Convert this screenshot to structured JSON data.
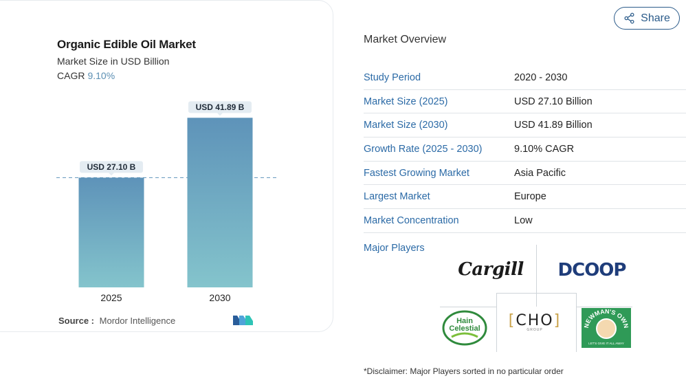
{
  "chart_data": {
    "type": "bar",
    "title": "Organic Edible Oil Market",
    "subtitle": "Market Size in USD Billion",
    "cagr_label": "CAGR",
    "cagr_value": "9.10%",
    "categories": [
      "2025",
      "2030"
    ],
    "values": [
      27.1,
      41.89
    ],
    "data_labels": [
      "USD 27.10 B",
      "USD 41.89 B"
    ],
    "ylim": [
      0,
      45
    ],
    "colors": {
      "bar_top": "#5e93b9",
      "bar_bottom": "#84c4cc",
      "reference_line": "#5e93b9"
    },
    "reference_line_value": 27.1,
    "source_label": "Source :",
    "source_value": "Mordor Intelligence"
  },
  "share": {
    "label": "Share",
    "icon": "share-icon",
    "color": "#2b5b8a"
  },
  "overview": {
    "title": "Market Overview",
    "rows": [
      {
        "key": "Study Period",
        "value": "2020 - 2030"
      },
      {
        "key": "Market Size (2025)",
        "value": "USD 27.10 Billion"
      },
      {
        "key": "Market Size (2030)",
        "value": "USD 41.89 Billion"
      },
      {
        "key": "Growth Rate (2025 - 2030)",
        "value": "9.10% CAGR"
      },
      {
        "key": "Fastest Growing Market",
        "value": "Asia Pacific"
      },
      {
        "key": "Largest Market",
        "value": "Europe"
      },
      {
        "key": "Market Concentration",
        "value": "Low"
      }
    ]
  },
  "players": {
    "label": "Major Players",
    "logos": [
      {
        "name": "cargill-logo",
        "text": "Cargill"
      },
      {
        "name": "dcoop-logo",
        "text": "DCOOP"
      },
      {
        "name": "hain-celestial-logo",
        "text_line1": "Hain",
        "text_line2": "Celestial"
      },
      {
        "name": "cho-group-logo",
        "text": "CHO",
        "sub": "GROUP"
      },
      {
        "name": "newmans-own-logo",
        "text": "NEWMAN'S OWN",
        "tagline": "LET'S GIVE IT ALL AWAY"
      }
    ]
  },
  "disclaimer": "*Disclaimer: Major Players sorted in no particular order"
}
